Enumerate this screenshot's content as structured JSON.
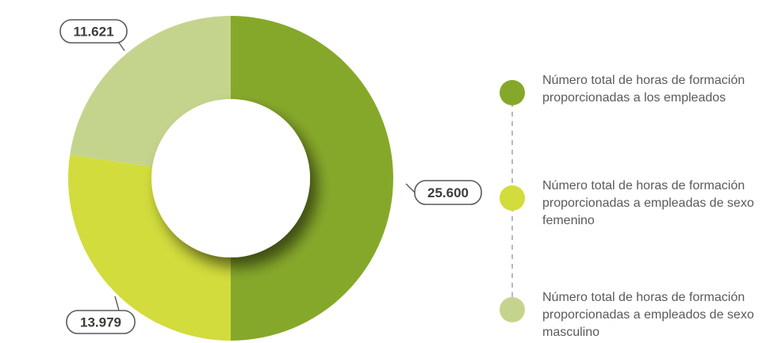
{
  "chart_data": {
    "type": "pie",
    "donut": true,
    "start_angle_deg": 0,
    "direction": "clockwise",
    "series": [
      {
        "name": "Número total de horas de formación proporcionadas a los empleados",
        "name_lines": [
          "Número total de horas de formación",
          "proporcionadas a los empleados"
        ],
        "value": 25600,
        "label": "25.600",
        "color": "#86a82a"
      },
      {
        "name": "Número total de horas de formación proporcionadas a empleadas de sexo femenino",
        "name_lines": [
          "Número total de horas de formación",
          "proporcionadas a empleadas de sexo",
          "femenino"
        ],
        "value": 13979,
        "label": "13.979",
        "color": "#d2dc3c"
      },
      {
        "name": "Número total de horas de formación proporcionadas a empleados de sexo masculino",
        "name_lines": [
          "Número total de horas de formación",
          "proporcionadas a empleados de sexo",
          "masculino"
        ],
        "value": 11621,
        "label": "11.621",
        "color": "#c5d48d"
      }
    ],
    "legend_position": "right",
    "data_labels": "outside-callouts"
  }
}
